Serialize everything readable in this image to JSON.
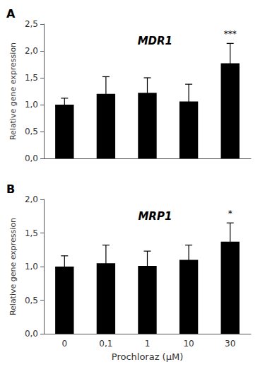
{
  "chart_data": [
    {
      "type": "bar",
      "panel_label": "A",
      "title": "MDR1",
      "categories": [
        "0",
        "0,1",
        "1",
        "10",
        "30"
      ],
      "values": [
        1.0,
        1.2,
        1.22,
        1.06,
        1.77
      ],
      "errors": [
        0.12,
        0.32,
        0.28,
        0.32,
        0.37
      ],
      "significance": [
        null,
        null,
        null,
        null,
        "***"
      ],
      "color": "#000000",
      "ylabel": "Relative gene expression",
      "ylim": [
        0,
        2.5
      ],
      "yticks": [
        {
          "value": 0.0,
          "label": "0,0"
        },
        {
          "value": 0.5,
          "label": "0,5"
        },
        {
          "value": 1.0,
          "label": "1,0"
        },
        {
          "value": 1.5,
          "label": "1,5"
        },
        {
          "value": 2.0,
          "label": "2,0"
        },
        {
          "value": 2.5,
          "label": "2,5"
        }
      ],
      "grid": false,
      "tick_labels": "y"
    },
    {
      "type": "bar",
      "panel_label": "B",
      "title": "MRP1",
      "categories": [
        "0",
        "0,1",
        "1",
        "10",
        "30"
      ],
      "values": [
        1.0,
        1.05,
        1.01,
        1.1,
        1.37
      ],
      "errors": [
        0.16,
        0.27,
        0.22,
        0.22,
        0.28
      ],
      "significance": [
        null,
        null,
        null,
        null,
        "*"
      ],
      "color": "#000000",
      "xlabel": "Prochloraz (μM)",
      "ylabel": "Relative gene expression",
      "ylim": [
        0,
        2.0
      ],
      "yticks": [
        {
          "value": 0.0,
          "label": "0,0"
        },
        {
          "value": 0.5,
          "label": "0,5"
        },
        {
          "value": 1.0,
          "label": "1,0"
        },
        {
          "value": 1.5,
          "label": "1,5"
        },
        {
          "value": 2.0,
          "label": "2,0"
        }
      ],
      "grid": false
    }
  ]
}
